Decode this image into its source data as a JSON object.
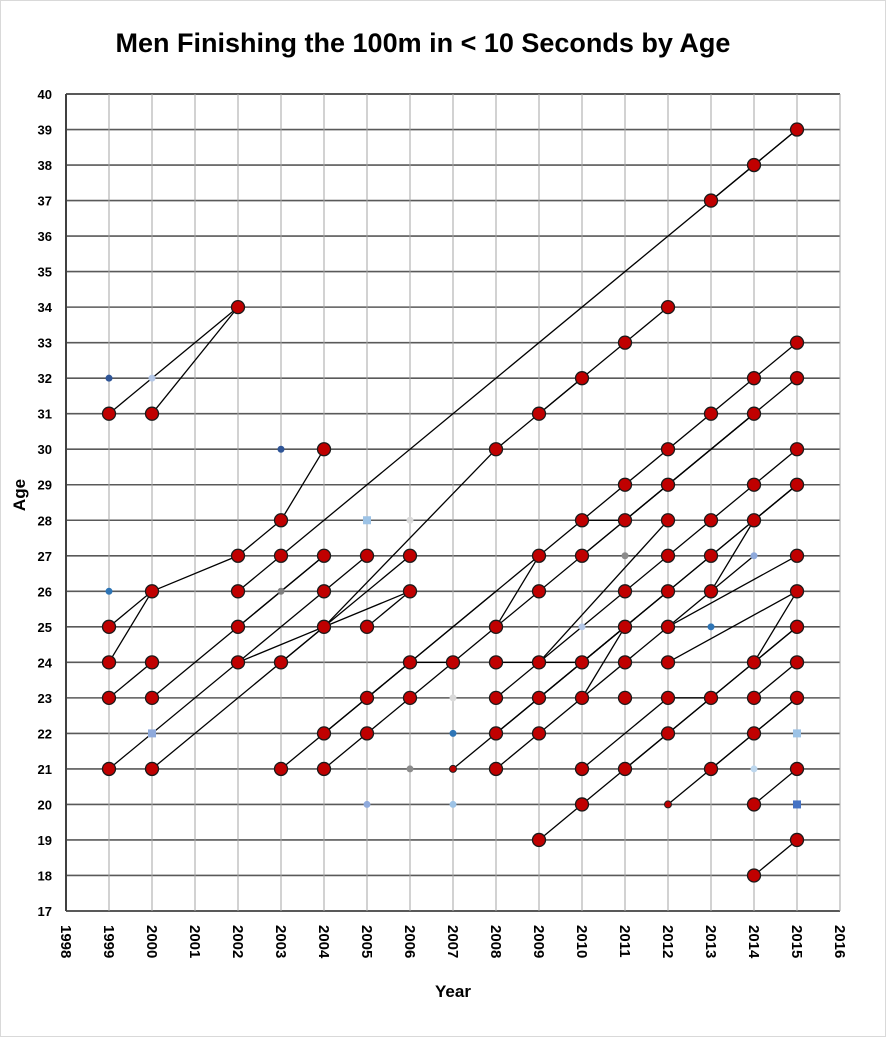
{
  "chart_data": {
    "type": "scatter",
    "title": "Men Finishing the 100m in < 10 Seconds by Age",
    "xlabel": "Year",
    "ylabel": "Age",
    "xlim": [
      1998,
      2016
    ],
    "ylim": [
      17,
      40
    ],
    "grid": true,
    "x_ticks": [
      "1998",
      "1999",
      "2000",
      "2001",
      "2002",
      "2003",
      "2004",
      "2005",
      "2006",
      "2007",
      "2008",
      "2009",
      "2010",
      "2011",
      "2012",
      "2013",
      "2014",
      "2015",
      "2016"
    ],
    "y_ticks": [
      "17",
      "18",
      "19",
      "20",
      "21",
      "22",
      "23",
      "24",
      "25",
      "26",
      "27",
      "28",
      "29",
      "30",
      "31",
      "32",
      "33",
      "34",
      "35",
      "36",
      "37",
      "38",
      "39",
      "40"
    ],
    "colors": {
      "primary_marker": "#c00000",
      "marker_edge": "#1a1a1a",
      "grid": "#808080",
      "line": "#000000"
    },
    "series": [
      {
        "name": "athletes (large markers)",
        "points": [
          [
            1999,
            31
          ],
          [
            1999,
            25
          ],
          [
            1999,
            24
          ],
          [
            1999,
            23
          ],
          [
            1999,
            21
          ],
          [
            2000,
            31
          ],
          [
            2000,
            26
          ],
          [
            2000,
            24
          ],
          [
            2000,
            23
          ],
          [
            2000,
            21
          ],
          [
            2002,
            34
          ],
          [
            2002,
            27
          ],
          [
            2002,
            26
          ],
          [
            2002,
            25
          ],
          [
            2002,
            24
          ],
          [
            2003,
            28
          ],
          [
            2003,
            27
          ],
          [
            2003,
            24
          ],
          [
            2003,
            21
          ],
          [
            2004,
            30
          ],
          [
            2004,
            27
          ],
          [
            2004,
            26
          ],
          [
            2004,
            25
          ],
          [
            2004,
            22
          ],
          [
            2004,
            21
          ],
          [
            2005,
            27
          ],
          [
            2005,
            25
          ],
          [
            2005,
            23
          ],
          [
            2005,
            22
          ],
          [
            2006,
            27
          ],
          [
            2006,
            26
          ],
          [
            2006,
            24
          ],
          [
            2006,
            23
          ],
          [
            2007,
            24
          ],
          [
            2008,
            30
          ],
          [
            2008,
            25
          ],
          [
            2008,
            24
          ],
          [
            2008,
            23
          ],
          [
            2008,
            22
          ],
          [
            2008,
            21
          ],
          [
            2009,
            31
          ],
          [
            2009,
            27
          ],
          [
            2009,
            26
          ],
          [
            2009,
            24
          ],
          [
            2009,
            23
          ],
          [
            2009,
            22
          ],
          [
            2009,
            19
          ],
          [
            2010,
            32
          ],
          [
            2010,
            28
          ],
          [
            2010,
            27
          ],
          [
            2010,
            24
          ],
          [
            2010,
            23
          ],
          [
            2010,
            21
          ],
          [
            2010,
            20
          ],
          [
            2011,
            33
          ],
          [
            2011,
            29
          ],
          [
            2011,
            28
          ],
          [
            2011,
            26
          ],
          [
            2011,
            25
          ],
          [
            2011,
            24
          ],
          [
            2011,
            23
          ],
          [
            2011,
            21
          ],
          [
            2012,
            34
          ],
          [
            2012,
            30
          ],
          [
            2012,
            29
          ],
          [
            2012,
            28
          ],
          [
            2012,
            27
          ],
          [
            2012,
            26
          ],
          [
            2012,
            25
          ],
          [
            2012,
            24
          ],
          [
            2012,
            23
          ],
          [
            2012,
            22
          ],
          [
            2013,
            37
          ],
          [
            2013,
            31
          ],
          [
            2013,
            28
          ],
          [
            2013,
            27
          ],
          [
            2013,
            26
          ],
          [
            2013,
            23
          ],
          [
            2013,
            21
          ],
          [
            2014,
            38
          ],
          [
            2014,
            32
          ],
          [
            2014,
            31
          ],
          [
            2014,
            29
          ],
          [
            2014,
            28
          ],
          [
            2014,
            24
          ],
          [
            2014,
            23
          ],
          [
            2014,
            22
          ],
          [
            2014,
            20
          ],
          [
            2014,
            18
          ],
          [
            2015,
            39
          ],
          [
            2015,
            33
          ],
          [
            2015,
            32
          ],
          [
            2015,
            30
          ],
          [
            2015,
            29
          ],
          [
            2015,
            27
          ],
          [
            2015,
            26
          ],
          [
            2015,
            25
          ],
          [
            2015,
            24
          ],
          [
            2015,
            23
          ],
          [
            2015,
            21
          ],
          [
            2015,
            19
          ]
        ]
      },
      {
        "name": "small markers",
        "points": [
          [
            1999,
            32,
            "#2f5597"
          ],
          [
            1999,
            26,
            "#2e75b6"
          ],
          [
            2000,
            32,
            "#b4c7e7"
          ],
          [
            2000,
            22,
            "#8faadc"
          ],
          [
            2003,
            30,
            "#2f5597"
          ],
          [
            2003,
            26,
            "#7f7f7f"
          ],
          [
            2005,
            28,
            "#9dc3e6"
          ],
          [
            2005,
            20,
            "#8faadc"
          ],
          [
            2006,
            28,
            "#d9d9d9"
          ],
          [
            2006,
            21,
            "#8c8c8c"
          ],
          [
            2007,
            23,
            "#d9d9d9"
          ],
          [
            2007,
            22,
            "#2e75b6"
          ],
          [
            2007,
            21,
            "#c00000"
          ],
          [
            2007,
            20,
            "#9dc3e6"
          ],
          [
            2010,
            25,
            "#b4c7e7"
          ],
          [
            2011,
            27,
            "#8c8c8c"
          ],
          [
            2012,
            20,
            "#c00000"
          ],
          [
            2013,
            25,
            "#2e75b6"
          ],
          [
            2014,
            27,
            "#8faadc"
          ],
          [
            2014,
            21,
            "#bdd7ee"
          ],
          [
            2015,
            22,
            "#9dc3e6"
          ],
          [
            2015,
            20,
            "#4472c4"
          ]
        ]
      },
      {
        "name": "connections",
        "segments": [
          [
            [
              1999,
              31
            ],
            [
              2002,
              34
            ]
          ],
          [
            [
              2000,
              31
            ],
            [
              2002,
              34
            ]
          ],
          [
            [
              1999,
              25
            ],
            [
              2000,
              26
            ]
          ],
          [
            [
              1999,
              24
            ],
            [
              2000,
              26
            ]
          ],
          [
            [
              2000,
              26
            ],
            [
              2002,
              27
            ]
          ],
          [
            [
              2002,
              27
            ],
            [
              2003,
              28
            ]
          ],
          [
            [
              2003,
              28
            ],
            [
              2004,
              30
            ]
          ],
          [
            [
              1999,
              23
            ],
            [
              2000,
              24
            ]
          ],
          [
            [
              2000,
              23
            ],
            [
              2004,
              27
            ]
          ],
          [
            [
              1999,
              21
            ],
            [
              2005,
              27
            ]
          ],
          [
            [
              2000,
              21
            ],
            [
              2006,
              27
            ]
          ],
          [
            [
              2002,
              26
            ],
            [
              2003,
              27
            ]
          ],
          [
            [
              2003,
              27
            ],
            [
              2015,
              39
            ]
          ],
          [
            [
              2002,
              25
            ],
            [
              2004,
              27
            ]
          ],
          [
            [
              2002,
              24
            ],
            [
              2006,
              26
            ]
          ],
          [
            [
              2003,
              24
            ],
            [
              2004,
              25
            ]
          ],
          [
            [
              2004,
              25
            ],
            [
              2008,
              30
            ]
          ],
          [
            [
              2008,
              30
            ],
            [
              2010,
              32
            ]
          ],
          [
            [
              2010,
              32
            ],
            [
              2012,
              34
            ]
          ],
          [
            [
              2003,
              21
            ],
            [
              2009,
              27
            ]
          ],
          [
            [
              2004,
              21
            ],
            [
              2005,
              22
            ]
          ],
          [
            [
              2005,
              22
            ],
            [
              2006,
              23
            ]
          ],
          [
            [
              2006,
              23
            ],
            [
              2007,
              24
            ]
          ],
          [
            [
              2007,
              24
            ],
            [
              2014,
              31
            ]
          ],
          [
            [
              2004,
              22
            ],
            [
              2008,
              26
            ]
          ],
          [
            [
              2005,
              23
            ],
            [
              2006,
              24
            ]
          ],
          [
            [
              2006,
              24
            ],
            [
              2007,
              24
            ]
          ],
          [
            [
              2005,
              25
            ],
            [
              2006,
              26
            ]
          ],
          [
            [
              2007,
              21
            ],
            [
              2012,
              26
            ]
          ],
          [
            [
              2008,
              21
            ],
            [
              2009,
              22
            ]
          ],
          [
            [
              2009,
              22
            ],
            [
              2014,
              27
            ]
          ],
          [
            [
              2008,
              22
            ],
            [
              2015,
              29
            ]
          ],
          [
            [
              2008,
              24
            ],
            [
              2009,
              24
            ]
          ],
          [
            [
              2009,
              24
            ],
            [
              2010,
              24
            ]
          ],
          [
            [
              2008,
              25
            ],
            [
              2009,
              27
            ]
          ],
          [
            [
              2008,
              23
            ],
            [
              2015,
              30
            ]
          ],
          [
            [
              2009,
              31
            ],
            [
              2010,
              32
            ]
          ],
          [
            [
              2009,
              27
            ],
            [
              2015,
              33
            ]
          ],
          [
            [
              2009,
              24
            ],
            [
              2012,
              28
            ]
          ],
          [
            [
              2010,
              24
            ],
            [
              2011,
              25
            ]
          ],
          [
            [
              2010,
              23
            ],
            [
              2011,
              25
            ]
          ],
          [
            [
              2010,
              28
            ],
            [
              2011,
              28
            ]
          ],
          [
            [
              2011,
              28
            ],
            [
              2014,
              31
            ]
          ],
          [
            [
              2010,
              27
            ],
            [
              2015,
              32
            ]
          ],
          [
            [
              2009,
              23
            ],
            [
              2010,
              24
            ]
          ],
          [
            [
              2010,
              24
            ],
            [
              2015,
              29
            ]
          ],
          [
            [
              2010,
              21
            ],
            [
              2012,
              23
            ]
          ],
          [
            [
              2012,
              23
            ],
            [
              2013,
              23
            ]
          ],
          [
            [
              2010,
              20
            ],
            [
              2015,
              25
            ]
          ],
          [
            [
              2011,
              21
            ],
            [
              2015,
              25
            ]
          ],
          [
            [
              2012,
              25
            ],
            [
              2015,
              27
            ]
          ],
          [
            [
              2012,
              24
            ],
            [
              2015,
              26
            ]
          ],
          [
            [
              2013,
              26
            ],
            [
              2014,
              28
            ]
          ],
          [
            [
              2014,
              28
            ],
            [
              2015,
              29
            ]
          ],
          [
            [
              2012,
              20
            ],
            [
              2015,
              23
            ]
          ],
          [
            [
              2013,
              21
            ],
            [
              2015,
              23
            ]
          ],
          [
            [
              2014,
              24
            ],
            [
              2015,
              26
            ]
          ],
          [
            [
              2014,
              23
            ],
            [
              2015,
              24
            ]
          ],
          [
            [
              2014,
              20
            ],
            [
              2015,
              21
            ]
          ],
          [
            [
              2014,
              18
            ],
            [
              2015,
              19
            ]
          ],
          [
            [
              2009,
              19
            ],
            [
              2010,
              20
            ]
          ],
          [
            [
              2013,
              37
            ],
            [
              2015,
              39
            ]
          ]
        ]
      }
    ]
  }
}
